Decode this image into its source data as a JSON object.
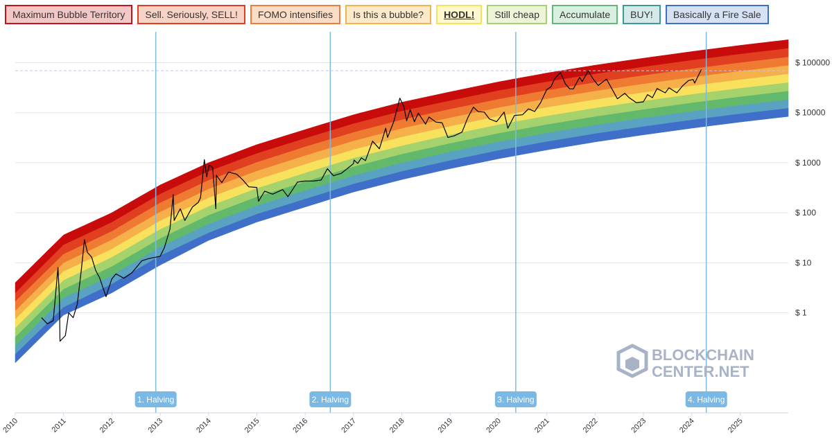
{
  "legend": [
    {
      "label": "Maximum Bubble Territory",
      "fill": "#f4c7c7",
      "border": "#c0141a"
    },
    {
      "label": "Sell. Seriously, SELL!",
      "fill": "#f9d3c6",
      "border": "#e03c22"
    },
    {
      "label": "FOMO intensifies",
      "fill": "#fbdcc6",
      "border": "#ef7c34"
    },
    {
      "label": "Is this a bubble?",
      "fill": "#fdeacb",
      "border": "#f5b347"
    },
    {
      "label": "HODL!",
      "fill": "#fff8cf",
      "border": "#f6e257"
    },
    {
      "label": "Still cheap",
      "fill": "#ecf5d8",
      "border": "#a7d073"
    },
    {
      "label": "Accumulate",
      "fill": "#d9efe0",
      "border": "#63b77a"
    },
    {
      "label": "BUY!",
      "fill": "#d5e9e8",
      "border": "#3a9a98"
    },
    {
      "label": "Basically a Fire Sale",
      "fill": "#d6e2f4",
      "border": "#3d6ec9"
    }
  ],
  "colors": {
    "bands": [
      "#3f6fc9",
      "#5aa2c1",
      "#63b96b",
      "#a5d26c",
      "#f7e15d",
      "#f6b049",
      "#ef7b33",
      "#e0401f",
      "#c80b0b"
    ],
    "halving_line": "#80b9df",
    "halving_label_bg": "#7ab8e6",
    "grid": "#e2e2e2",
    "price_line": "#000000"
  },
  "watermark": {
    "line1": "BLOCKCHAIN",
    "line2": "CENTER.NET",
    "icon": "cube-logo-icon"
  },
  "chart_data": {
    "type": "line",
    "title": "",
    "xlabel": "",
    "ylabel": "",
    "y_scale": "log",
    "y_ticks": [
      1,
      10,
      100,
      1000,
      10000,
      100000
    ],
    "y_tick_labels": [
      "$ 1",
      "$ 10",
      "$ 100",
      "$ 1000",
      "$ 10000",
      "$ 100000"
    ],
    "x_tick_labels": [
      "2010",
      "2011",
      "2012",
      "2013",
      "2014",
      "2015",
      "2016",
      "2017",
      "2018",
      "2019",
      "2020",
      "2021",
      "2022",
      "2023",
      "2024",
      "2025"
    ],
    "xlim": [
      "2010-01-01",
      "2025-12-31"
    ],
    "ylim": [
      0.01,
      500000
    ],
    "grid": true,
    "legend_position": "top",
    "bands": {
      "names": [
        "Basically a Fire Sale",
        "BUY!",
        "Accumulate",
        "Still cheap",
        "HODL!",
        "Is this a bubble?",
        "FOMO intensifies",
        "Sell. Seriously, SELL!",
        "Maximum Bubble Territory"
      ],
      "boundaries": [
        {
          "date": "2010-01-01",
          "values": [
            0.1,
            0.15,
            0.22,
            0.33,
            0.5,
            0.75,
            1.1,
            1.7,
            2.5,
            4.0
          ]
        },
        {
          "date": "2011-01-01",
          "values": [
            0.9,
            1.3,
            2.0,
            3.0,
            4.5,
            6.8,
            10,
            15,
            23,
            36
          ]
        },
        {
          "date": "2012-01-01",
          "values": [
            2.5,
            3.8,
            5.6,
            8.5,
            13,
            19,
            29,
            43,
            65,
            100
          ]
        },
        {
          "date": "2013-01-01",
          "values": [
            9,
            14,
            21,
            31,
            47,
            70,
            105,
            160,
            240,
            360
          ]
        },
        {
          "date": "2014-01-01",
          "values": [
            28,
            40,
            60,
            90,
            135,
            200,
            300,
            450,
            680,
            1000
          ]
        },
        {
          "date": "2015-01-01",
          "values": [
            65,
            95,
            140,
            210,
            310,
            460,
            690,
            1030,
            1550,
            2300
          ]
        },
        {
          "date": "2016-01-01",
          "values": [
            130,
            190,
            280,
            420,
            630,
            940,
            1400,
            2100,
            3100,
            4600
          ]
        },
        {
          "date": "2017-01-01",
          "values": [
            260,
            380,
            560,
            840,
            1250,
            1850,
            2750,
            4100,
            6100,
            9100
          ]
        },
        {
          "date": "2018-01-01",
          "values": [
            460,
            680,
            1000,
            1500,
            2200,
            3300,
            4900,
            7300,
            10900,
            16200
          ]
        },
        {
          "date": "2019-01-01",
          "values": [
            760,
            1120,
            1660,
            2460,
            3650,
            5400,
            8000,
            11900,
            17600,
            26100
          ]
        },
        {
          "date": "2020-01-01",
          "values": [
            1200,
            1780,
            2640,
            3900,
            5800,
            8600,
            12700,
            18800,
            27900,
            41300
          ]
        },
        {
          "date": "2021-01-01",
          "values": [
            1800,
            2670,
            3950,
            5850,
            8700,
            12900,
            19100,
            28300,
            41900,
            62100
          ]
        },
        {
          "date": "2022-01-01",
          "values": [
            2600,
            3850,
            5700,
            8450,
            12500,
            18500,
            27400,
            40600,
            60200,
            89200
          ]
        },
        {
          "date": "2023-01-01",
          "values": [
            3600,
            5330,
            7900,
            11700,
            17300,
            25600,
            37900,
            56200,
            83300,
            123000
          ]
        },
        {
          "date": "2024-01-01",
          "values": [
            4900,
            7250,
            10700,
            15900,
            23500,
            34800,
            51500,
            76300,
            113000,
            167000
          ]
        },
        {
          "date": "2025-01-01",
          "values": [
            6500,
            9600,
            14200,
            21000,
            31200,
            46200,
            68400,
            101000,
            150000,
            222000
          ]
        },
        {
          "date": "2025-12-31",
          "values": [
            8400,
            12400,
            18400,
            27300,
            40400,
            59900,
            88700,
            131000,
            195000,
            288000
          ]
        }
      ]
    },
    "halvings": [
      {
        "label": "1. Halving",
        "date": "2012-11-28"
      },
      {
        "label": "2. Halving",
        "date": "2016-07-09"
      },
      {
        "label": "3. Halving",
        "date": "2020-05-11"
      },
      {
        "label": "4. Halving",
        "date": "2024-04-20"
      }
    ],
    "ath_reference": 69000,
    "series": [
      {
        "points": [
          [
            "2010-07-18",
            0.8
          ],
          [
            "2010-09-01",
            0.6
          ],
          [
            "2010-10-15",
            0.7
          ],
          [
            "2010-11-08",
            3.5
          ],
          [
            "2010-11-20",
            8.0
          ],
          [
            "2010-12-01",
            2.0
          ],
          [
            "2010-12-05",
            0.27
          ],
          [
            "2011-01-15",
            0.35
          ],
          [
            "2011-02-09",
            1.0
          ],
          [
            "2011-03-15",
            0.8
          ],
          [
            "2011-04-15",
            1.5
          ],
          [
            "2011-05-15",
            7
          ],
          [
            "2011-06-08",
            29
          ],
          [
            "2011-07-01",
            16
          ],
          [
            "2011-08-01",
            13
          ],
          [
            "2011-09-01",
            7
          ],
          [
            "2011-10-01",
            5
          ],
          [
            "2011-11-18",
            2.1
          ],
          [
            "2011-12-31",
            4.7
          ],
          [
            "2012-02-01",
            6
          ],
          [
            "2012-04-01",
            4.9
          ],
          [
            "2012-06-01",
            6.3
          ],
          [
            "2012-08-15",
            11
          ],
          [
            "2012-10-01",
            12
          ],
          [
            "2012-12-31",
            13.5
          ],
          [
            "2013-02-01",
            20
          ],
          [
            "2013-03-15",
            47
          ],
          [
            "2013-04-09",
            230
          ],
          [
            "2013-04-16",
            70
          ],
          [
            "2013-06-01",
            120
          ],
          [
            "2013-07-06",
            70
          ],
          [
            "2013-09-01",
            130
          ],
          [
            "2013-10-15",
            160
          ],
          [
            "2013-11-01",
            200
          ],
          [
            "2013-11-30",
            1150
          ],
          [
            "2013-12-18",
            520
          ],
          [
            "2014-01-05",
            900
          ],
          [
            "2014-02-01",
            800
          ],
          [
            "2014-02-25",
            120
          ],
          [
            "2014-03-01",
            560
          ],
          [
            "2014-04-11",
            400
          ],
          [
            "2014-06-01",
            650
          ],
          [
            "2014-08-01",
            590
          ],
          [
            "2014-09-15",
            460
          ],
          [
            "2014-11-01",
            330
          ],
          [
            "2014-12-31",
            320
          ],
          [
            "2015-01-14",
            170
          ],
          [
            "2015-03-01",
            270
          ],
          [
            "2015-05-01",
            235
          ],
          [
            "2015-07-15",
            290
          ],
          [
            "2015-08-24",
            210
          ],
          [
            "2015-11-04",
            410
          ],
          [
            "2015-12-31",
            430
          ],
          [
            "2016-03-01",
            430
          ],
          [
            "2016-05-01",
            450
          ],
          [
            "2016-06-17",
            760
          ],
          [
            "2016-08-02",
            550
          ],
          [
            "2016-10-01",
            615
          ],
          [
            "2016-12-31",
            960
          ],
          [
            "2017-01-05",
            1130
          ],
          [
            "2017-02-01",
            970
          ],
          [
            "2017-03-01",
            1250
          ],
          [
            "2017-04-01",
            1100
          ],
          [
            "2017-05-25",
            2700
          ],
          [
            "2017-07-15",
            1900
          ],
          [
            "2017-09-01",
            4900
          ],
          [
            "2017-09-15",
            3200
          ],
          [
            "2017-11-01",
            6700
          ],
          [
            "2017-12-17",
            19500
          ],
          [
            "2018-01-15",
            13500
          ],
          [
            "2018-02-06",
            6900
          ],
          [
            "2018-03-05",
            11500
          ],
          [
            "2018-04-06",
            6600
          ],
          [
            "2018-05-05",
            9800
          ],
          [
            "2018-06-29",
            5900
          ],
          [
            "2018-07-25",
            8200
          ],
          [
            "2018-09-15",
            6500
          ],
          [
            "2018-11-01",
            6300
          ],
          [
            "2018-12-15",
            3200
          ],
          [
            "2019-02-01",
            3450
          ],
          [
            "2019-04-01",
            4100
          ],
          [
            "2019-05-15",
            8000
          ],
          [
            "2019-06-26",
            12900
          ],
          [
            "2019-08-01",
            10500
          ],
          [
            "2019-09-15",
            10300
          ],
          [
            "2019-10-25",
            7500
          ],
          [
            "2019-12-18",
            6600
          ],
          [
            "2020-02-13",
            10300
          ],
          [
            "2020-03-12",
            4900
          ],
          [
            "2020-05-01",
            8800
          ],
          [
            "2020-07-01",
            9100
          ],
          [
            "2020-08-15",
            11900
          ],
          [
            "2020-10-01",
            10600
          ],
          [
            "2020-11-15",
            16000
          ],
          [
            "2020-12-31",
            29000
          ],
          [
            "2021-02-01",
            33000
          ],
          [
            "2021-03-01",
            48000
          ],
          [
            "2021-04-14",
            63500
          ],
          [
            "2021-05-20",
            38000
          ],
          [
            "2021-06-22",
            30000
          ],
          [
            "2021-07-20",
            29800
          ],
          [
            "2021-09-05",
            51000
          ],
          [
            "2021-09-25",
            42000
          ],
          [
            "2021-11-10",
            68700
          ],
          [
            "2021-12-15",
            48000
          ],
          [
            "2022-01-24",
            35000
          ],
          [
            "2022-03-28",
            47000
          ],
          [
            "2022-05-12",
            28500
          ],
          [
            "2022-06-18",
            19000
          ],
          [
            "2022-08-13",
            24400
          ],
          [
            "2022-09-15",
            20000
          ],
          [
            "2022-11-09",
            15800
          ],
          [
            "2022-12-31",
            16500
          ],
          [
            "2023-02-01",
            23000
          ],
          [
            "2023-03-10",
            20000
          ],
          [
            "2023-04-14",
            30400
          ],
          [
            "2023-06-15",
            25000
          ],
          [
            "2023-07-13",
            31400
          ],
          [
            "2023-09-11",
            25000
          ],
          [
            "2023-10-24",
            34500
          ],
          [
            "2023-12-08",
            44000
          ],
          [
            "2024-01-12",
            46000
          ],
          [
            "2024-01-23",
            39000
          ],
          [
            "2024-02-15",
            52000
          ],
          [
            "2024-03-14",
            73000
          ]
        ]
      }
    ]
  }
}
